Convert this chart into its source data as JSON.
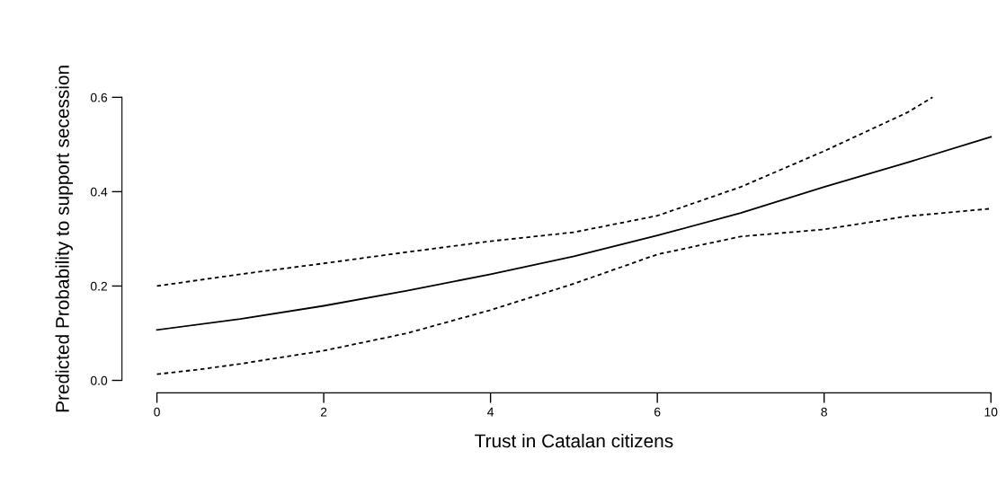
{
  "chart_data": {
    "type": "line",
    "xlabel": "Trust in Catalan citizens",
    "ylabel": "Predicted Probability to support secession",
    "xlim": [
      0,
      10
    ],
    "ylim": [
      0,
      0.6
    ],
    "xticks": [
      0,
      2,
      4,
      6,
      8,
      10
    ],
    "yticks": [
      {
        "value": 0,
        "label": "0.0"
      },
      {
        "value": 0.2,
        "label": "0.2"
      },
      {
        "value": 0.4,
        "label": "0.4"
      },
      {
        "value": 0.6,
        "label": "0.6"
      }
    ],
    "grid": false,
    "legend": false,
    "series": [
      {
        "color": "#000000",
        "line_style": "solid",
        "x": [
          0,
          1,
          2,
          3,
          4,
          5,
          6,
          7,
          8,
          9,
          10
        ],
        "values": [
          0.107,
          0.13,
          0.158,
          0.19,
          0.225,
          0.263,
          0.307,
          0.355,
          0.41,
          0.462,
          0.516
        ]
      },
      {
        "color": "#000000",
        "line_style": "dashed",
        "x": [
          0,
          1,
          2,
          3,
          4,
          5,
          6,
          7,
          8,
          9,
          9.3
        ],
        "values": [
          0.2,
          0.225,
          0.248,
          0.272,
          0.295,
          0.314,
          0.349,
          0.41,
          0.486,
          0.568,
          0.6
        ]
      },
      {
        "color": "#000000",
        "line_style": "dashed",
        "x": [
          0,
          0.5,
          1,
          2,
          3,
          4,
          5,
          6,
          7,
          8,
          9,
          10
        ],
        "values": [
          0.013,
          0.023,
          0.035,
          0.063,
          0.1,
          0.149,
          0.205,
          0.267,
          0.305,
          0.32,
          0.348,
          0.364
        ]
      }
    ]
  }
}
